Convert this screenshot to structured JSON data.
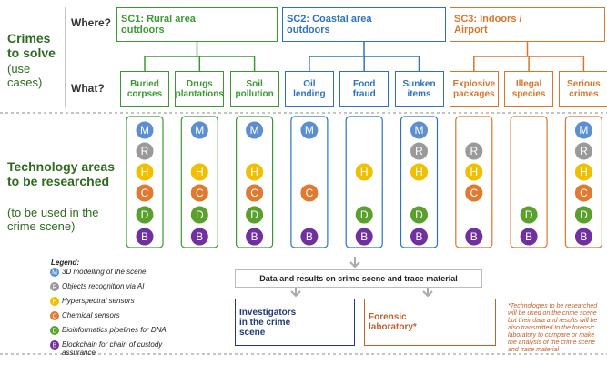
{
  "labels": {
    "crimes": "Crimes to solve",
    "crimes_sub": "(use cases)",
    "tech": "Technology areas to be researched",
    "tech_sub": "(to be used in the crime scene)",
    "where": "Where?",
    "what": "What?"
  },
  "scenarios": [
    {
      "title": "SC1: Rural area outdoors",
      "use_cases": [
        {
          "name": "Buried corpses",
          "techs": [
            "M",
            "R",
            "H",
            "C",
            "D",
            "B"
          ]
        },
        {
          "name": "Drugs plantations",
          "techs": [
            "M",
            "H",
            "C",
            "D",
            "B"
          ]
        },
        {
          "name": "Soil pollution",
          "techs": [
            "M",
            "H",
            "C",
            "D",
            "B"
          ]
        }
      ]
    },
    {
      "title": "SC2: Coastal area outdoors",
      "use_cases": [
        {
          "name": "Oil lending",
          "techs": [
            "M",
            "C",
            "B"
          ]
        },
        {
          "name": "Food fraud",
          "techs": [
            "H",
            "D",
            "B"
          ]
        },
        {
          "name": "Sunken items",
          "techs": [
            "M",
            "R",
            "H",
            "D",
            "B"
          ]
        }
      ]
    },
    {
      "title": "SC3: Indoors / Airport",
      "use_cases": [
        {
          "name": "Explosive packages",
          "techs": [
            "R",
            "H",
            "C",
            "B"
          ]
        },
        {
          "name": "Illegal species",
          "techs": [
            "D",
            "B"
          ]
        },
        {
          "name": "Serious crimes",
          "techs": [
            "M",
            "R",
            "H",
            "C",
            "D",
            "B"
          ]
        }
      ]
    }
  ],
  "legend": {
    "title": "Legend:",
    "items": [
      {
        "letter": "M",
        "text": "3D modelling of the scene"
      },
      {
        "letter": "R",
        "text": "Objects recognition via AI"
      },
      {
        "letter": "H",
        "text": "Hyperspectral sensors"
      },
      {
        "letter": "C",
        "text": "Chemical sensors"
      },
      {
        "letter": "D",
        "text": "Bioinformatics pipelines for DNA"
      },
      {
        "letter": "B",
        "text": "Blockchain for chain of custody assurance"
      }
    ]
  },
  "flow": {
    "data": "Data and results on crime scene and trace material",
    "investigators": "Investigators in the crime scene",
    "lab": "Forensic laboratory*"
  },
  "footnote": "*Technologies to be researched will be used on the crime scene but their data and results will be also transmitted to the forensic laboratory to compare or make the analysis of the crime scene and trace material"
}
